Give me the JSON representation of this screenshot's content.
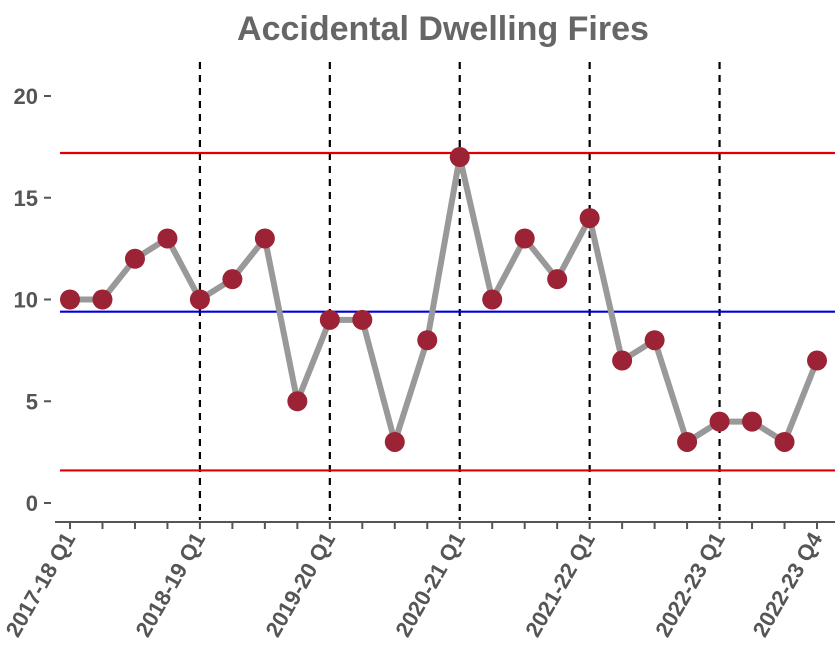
{
  "chart_data": {
    "type": "line",
    "title": "Accidental Dwelling Fires",
    "xlabel": "",
    "ylabel": "",
    "ylim": [
      0,
      20
    ],
    "yticks": [
      0,
      5,
      10,
      15,
      20
    ],
    "x": [
      "2017-18 Q1",
      "2017-18 Q2",
      "2017-18 Q3",
      "2017-18 Q4",
      "2018-19 Q1",
      "2018-19 Q2",
      "2018-19 Q3",
      "2018-19 Q4",
      "2019-20 Q1",
      "2019-20 Q2",
      "2019-20 Q3",
      "2019-20 Q4",
      "2020-21 Q1",
      "2020-21 Q2",
      "2020-21 Q3",
      "2020-21 Q4",
      "2021-22 Q1",
      "2021-22 Q2",
      "2021-22 Q3",
      "2021-22 Q4",
      "2022-23 Q1",
      "2022-23 Q2",
      "2022-23 Q3",
      "2022-23 Q4"
    ],
    "xtick_labels": [
      "2017-18 Q1",
      "2018-19 Q1",
      "2019-20 Q1",
      "2020-21 Q1",
      "2021-22 Q1",
      "2022-23 Q1",
      "2022-23 Q4"
    ],
    "series": [
      {
        "values": [
          10,
          10,
          12,
          13,
          10,
          11,
          13,
          5,
          9,
          9,
          3,
          8,
          17,
          10,
          13,
          11,
          14,
          7,
          8,
          3,
          4,
          4,
          3,
          7
        ]
      }
    ],
    "mean_line": 9.4,
    "upper_control_limit": 17.2,
    "lower_control_limit": 1.6,
    "year_boundaries": [
      "2018-19 Q1",
      "2019-20 Q1",
      "2020-21 Q1",
      "2021-22 Q1",
      "2022-23 Q1"
    ],
    "colors": {
      "line": "#999999",
      "points": "#9b2335",
      "mean": "#0000dd",
      "limits": "#dd0000",
      "boundaries": "#000000",
      "title": "#666666",
      "axis_text": "#555555"
    },
    "grid": false,
    "legend": "none"
  }
}
